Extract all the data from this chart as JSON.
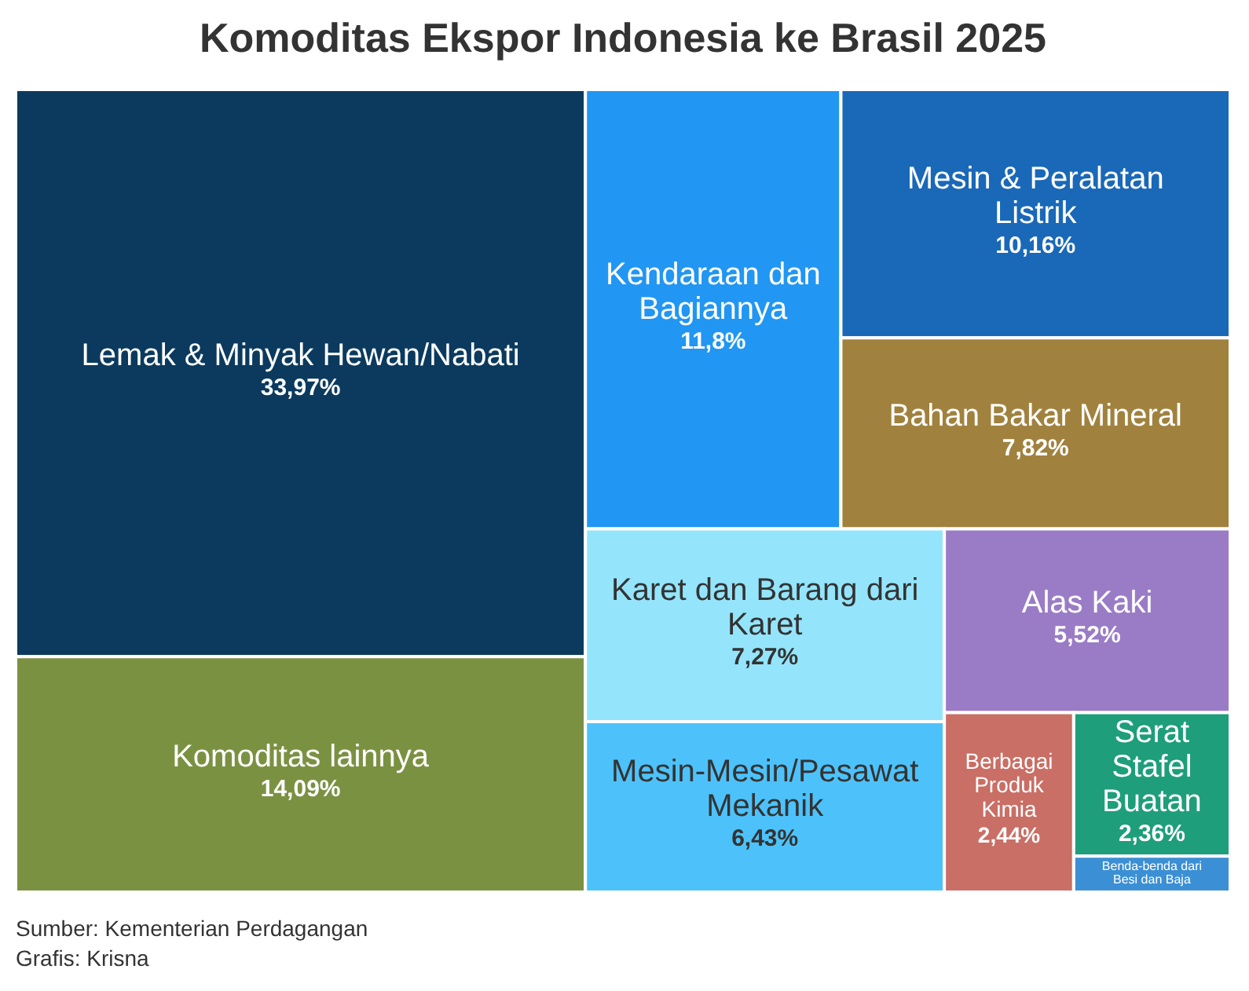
{
  "chart_data": {
    "type": "other",
    "title": "Komoditas Ekspor Indonesia ke Brasil 2025",
    "categories": [
      "Lemak & Minyak Hewan/Nabati",
      "Komoditas lainnya",
      "Kendaraan dan Bagiannya",
      "Mesin & Peralatan Listrik",
      "Bahan Bakar Mineral",
      "Karet dan Barang dari Karet",
      "Mesin-Mesin/Pesawat Mekanik",
      "Alas Kaki",
      "Berbagai Produk Kimia",
      "Serat Stafel Buatan",
      "Benda-benda dari Besi dan Baja"
    ],
    "values": [
      33.97,
      14.09,
      11.8,
      10.16,
      7.82,
      7.27,
      6.43,
      5.52,
      2.44,
      2.36,
      null
    ],
    "value_labels": [
      "33,97%",
      "14,09%",
      "11,8%",
      "10,16%",
      "7,82%",
      "7,27%",
      "6,43%",
      "5,52%",
      "2,44%",
      "2,36%",
      null
    ],
    "colors": [
      "#0b3a5e",
      "#7b9142",
      "#2196f3",
      "#1a68b8",
      "#a0823e",
      "#94e5fc",
      "#4dc2fa",
      "#9a7cc6",
      "#c96f66",
      "#1e9e7a",
      "#3b8fd4"
    ],
    "annotations": [
      "Sumber: Kementerian Perdagangan",
      "Grafis: Krisna"
    ]
  }
}
